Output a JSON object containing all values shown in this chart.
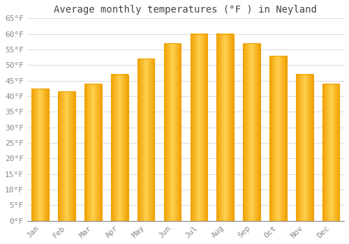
{
  "title": "Average monthly temperatures (°F ) in Neyland",
  "months": [
    "Jan",
    "Feb",
    "Mar",
    "Apr",
    "May",
    "Jun",
    "Jul",
    "Aug",
    "Sep",
    "Oct",
    "Nov",
    "Dec"
  ],
  "values": [
    42.5,
    41.5,
    44,
    47,
    52,
    57,
    60,
    60,
    57,
    53,
    47,
    44
  ],
  "bar_color_center": "#FFD050",
  "bar_color_edge": "#F0A000",
  "ylim": [
    0,
    65
  ],
  "yticks": [
    0,
    5,
    10,
    15,
    20,
    25,
    30,
    35,
    40,
    45,
    50,
    55,
    60,
    65
  ],
  "ytick_labels": [
    "0°F",
    "5°F",
    "10°F",
    "15°F",
    "20°F",
    "25°F",
    "30°F",
    "35°F",
    "40°F",
    "45°F",
    "50°F",
    "55°F",
    "60°F",
    "65°F"
  ],
  "background_color": "#ffffff",
  "grid_color": "#dddddd",
  "tick_label_color": "#888888",
  "title_color": "#444444",
  "title_fontsize": 10,
  "tick_fontsize": 8,
  "bar_width": 0.65
}
